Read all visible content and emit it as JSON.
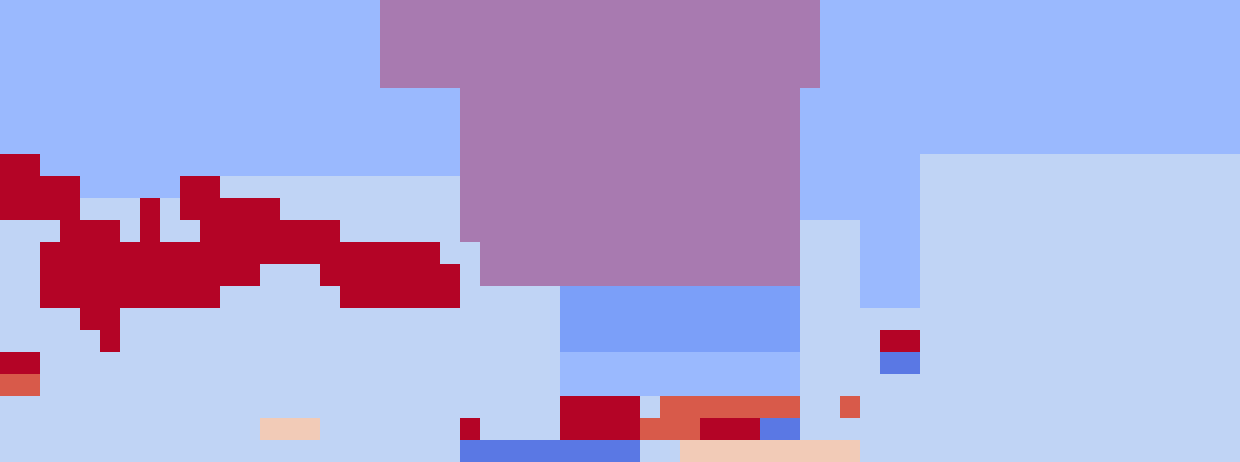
{
  "chart_data": {
    "type": "heatmap",
    "tick_labels": false,
    "xlim": [
      0,
      62
    ],
    "ylim": [
      0,
      21
    ],
    "zlim": [
      0,
      9
    ],
    "cells": [
      [
        3,
        3,
        3,
        3,
        3,
        3,
        3,
        3,
        3,
        3,
        3,
        3,
        3,
        3,
        3,
        3,
        3,
        3,
        3,
        5,
        5,
        5,
        5,
        5,
        5,
        5,
        5,
        5,
        5,
        5,
        5,
        5,
        5,
        5,
        5,
        5,
        5,
        5,
        5,
        5,
        5,
        3,
        3,
        3,
        3,
        3,
        3,
        3,
        3,
        3,
        3,
        3,
        3,
        3,
        3,
        3,
        3,
        3,
        3,
        3,
        3,
        3
      ],
      [
        3,
        3,
        3,
        3,
        3,
        3,
        3,
        3,
        3,
        3,
        3,
        3,
        3,
        3,
        3,
        3,
        3,
        3,
        3,
        5,
        5,
        5,
        5,
        5,
        5,
        5,
        5,
        5,
        5,
        5,
        5,
        5,
        5,
        5,
        5,
        5,
        5,
        5,
        5,
        5,
        5,
        3,
        3,
        3,
        3,
        3,
        3,
        3,
        3,
        3,
        3,
        3,
        3,
        3,
        3,
        3,
        3,
        3,
        3,
        3,
        3,
        3
      ],
      [
        3,
        3,
        3,
        3,
        3,
        3,
        3,
        3,
        3,
        3,
        3,
        3,
        3,
        3,
        3,
        3,
        3,
        3,
        3,
        5,
        5,
        5,
        5,
        5,
        5,
        5,
        5,
        5,
        5,
        5,
        5,
        5,
        5,
        5,
        5,
        5,
        5,
        5,
        5,
        5,
        5,
        3,
        3,
        3,
        3,
        3,
        3,
        3,
        3,
        3,
        3,
        3,
        3,
        3,
        3,
        3,
        3,
        3,
        3,
        3,
        3,
        3
      ],
      [
        3,
        3,
        3,
        3,
        3,
        3,
        3,
        3,
        3,
        3,
        3,
        3,
        3,
        3,
        3,
        3,
        3,
        3,
        3,
        5,
        5,
        5,
        5,
        5,
        5,
        5,
        5,
        5,
        5,
        5,
        5,
        5,
        5,
        5,
        5,
        5,
        5,
        5,
        5,
        5,
        5,
        3,
        3,
        3,
        3,
        3,
        3,
        3,
        3,
        3,
        3,
        3,
        3,
        3,
        3,
        3,
        3,
        3,
        3,
        3,
        3,
        3
      ],
      [
        3,
        3,
        3,
        3,
        3,
        3,
        3,
        3,
        3,
        3,
        3,
        3,
        3,
        3,
        3,
        3,
        3,
        3,
        3,
        3,
        3,
        3,
        3,
        5,
        5,
        5,
        5,
        5,
        5,
        5,
        5,
        5,
        5,
        5,
        5,
        5,
        5,
        5,
        5,
        5,
        3,
        3,
        3,
        3,
        3,
        3,
        3,
        3,
        3,
        3,
        3,
        3,
        3,
        3,
        3,
        3,
        3,
        3,
        3,
        3,
        3,
        3
      ],
      [
        3,
        3,
        3,
        3,
        3,
        3,
        3,
        3,
        3,
        3,
        3,
        3,
        3,
        3,
        3,
        3,
        3,
        3,
        3,
        3,
        3,
        3,
        3,
        5,
        5,
        5,
        5,
        5,
        5,
        5,
        5,
        5,
        5,
        5,
        5,
        5,
        5,
        5,
        5,
        5,
        3,
        3,
        3,
        3,
        3,
        3,
        3,
        3,
        3,
        3,
        3,
        3,
        3,
        3,
        3,
        3,
        3,
        3,
        3,
        3,
        3,
        3
      ],
      [
        3,
        3,
        3,
        3,
        3,
        3,
        3,
        3,
        3,
        3,
        3,
        3,
        3,
        3,
        3,
        3,
        3,
        3,
        3,
        3,
        3,
        3,
        3,
        5,
        5,
        5,
        5,
        5,
        5,
        5,
        5,
        5,
        5,
        5,
        5,
        5,
        5,
        5,
        5,
        5,
        3,
        3,
        3,
        3,
        3,
        3,
        3,
        3,
        3,
        3,
        3,
        3,
        3,
        3,
        3,
        3,
        3,
        3,
        3,
        3,
        3,
        3
      ],
      [
        9,
        9,
        3,
        3,
        3,
        3,
        3,
        3,
        3,
        3,
        3,
        3,
        3,
        3,
        3,
        3,
        3,
        3,
        3,
        3,
        3,
        3,
        3,
        5,
        5,
        5,
        5,
        5,
        5,
        5,
        5,
        5,
        5,
        5,
        5,
        5,
        5,
        5,
        5,
        5,
        3,
        3,
        3,
        3,
        3,
        3,
        4,
        4,
        4,
        4,
        4,
        4,
        4,
        4,
        4,
        4,
        4,
        4,
        4,
        4,
        4,
        4
      ],
      [
        9,
        9,
        9,
        9,
        3,
        3,
        3,
        3,
        3,
        9,
        9,
        4,
        4,
        4,
        4,
        4,
        4,
        4,
        4,
        4,
        4,
        4,
        4,
        5,
        5,
        5,
        5,
        5,
        5,
        5,
        5,
        5,
        5,
        5,
        5,
        5,
        5,
        5,
        5,
        5,
        3,
        3,
        3,
        3,
        3,
        3,
        4,
        4,
        4,
        4,
        4,
        4,
        4,
        4,
        4,
        4,
        4,
        4,
        4,
        4,
        4,
        4
      ],
      [
        9,
        9,
        9,
        9,
        4,
        4,
        4,
        9,
        4,
        9,
        9,
        9,
        9,
        9,
        4,
        4,
        4,
        4,
        4,
        4,
        4,
        4,
        4,
        5,
        5,
        5,
        5,
        5,
        5,
        5,
        5,
        5,
        5,
        5,
        5,
        5,
        5,
        5,
        5,
        5,
        3,
        3,
        3,
        3,
        3,
        3,
        4,
        4,
        4,
        4,
        4,
        4,
        4,
        4,
        4,
        4,
        4,
        4,
        4,
        4,
        4,
        4
      ],
      [
        4,
        4,
        4,
        9,
        9,
        9,
        4,
        9,
        4,
        4,
        9,
        9,
        9,
        9,
        9,
        9,
        9,
        4,
        4,
        4,
        4,
        4,
        4,
        5,
        5,
        5,
        5,
        5,
        5,
        5,
        5,
        5,
        5,
        5,
        5,
        5,
        5,
        5,
        5,
        5,
        4,
        4,
        4,
        3,
        3,
        3,
        4,
        4,
        4,
        4,
        4,
        4,
        4,
        4,
        4,
        4,
        4,
        4,
        4,
        4,
        4,
        4
      ],
      [
        4,
        4,
        9,
        9,
        9,
        9,
        9,
        9,
        9,
        9,
        9,
        9,
        9,
        9,
        9,
        9,
        9,
        9,
        9,
        9,
        9,
        9,
        4,
        4,
        5,
        5,
        5,
        5,
        5,
        5,
        5,
        5,
        5,
        5,
        5,
        5,
        5,
        5,
        5,
        5,
        4,
        4,
        4,
        3,
        3,
        3,
        4,
        4,
        4,
        4,
        4,
        4,
        4,
        4,
        4,
        4,
        4,
        4,
        4,
        4,
        4,
        4
      ],
      [
        4,
        4,
        9,
        9,
        9,
        9,
        9,
        9,
        9,
        9,
        9,
        9,
        9,
        4,
        4,
        4,
        9,
        9,
        9,
        9,
        9,
        9,
        9,
        4,
        5,
        5,
        5,
        5,
        5,
        5,
        5,
        5,
        5,
        5,
        5,
        5,
        5,
        5,
        5,
        5,
        4,
        4,
        4,
        3,
        3,
        3,
        4,
        4,
        4,
        4,
        4,
        4,
        4,
        4,
        4,
        4,
        4,
        4,
        4,
        4,
        4,
        4
      ],
      [
        4,
        4,
        9,
        9,
        9,
        9,
        9,
        9,
        9,
        9,
        9,
        4,
        4,
        4,
        4,
        4,
        4,
        9,
        9,
        9,
        9,
        9,
        9,
        4,
        4,
        4,
        4,
        4,
        2,
        2,
        2,
        2,
        2,
        2,
        2,
        2,
        2,
        2,
        2,
        2,
        4,
        4,
        4,
        3,
        3,
        3,
        4,
        4,
        4,
        4,
        4,
        4,
        4,
        4,
        4,
        4,
        4,
        4,
        4,
        4,
        4,
        4
      ],
      [
        4,
        4,
        4,
        4,
        9,
        9,
        4,
        4,
        4,
        4,
        4,
        4,
        4,
        4,
        4,
        4,
        4,
        4,
        4,
        4,
        4,
        4,
        4,
        4,
        4,
        4,
        4,
        4,
        2,
        2,
        2,
        2,
        2,
        2,
        2,
        2,
        2,
        2,
        2,
        2,
        4,
        4,
        4,
        4,
        4,
        4,
        4,
        4,
        4,
        4,
        4,
        4,
        4,
        4,
        4,
        4,
        4,
        4,
        4,
        4,
        4,
        4
      ],
      [
        4,
        4,
        4,
        4,
        4,
        9,
        4,
        4,
        4,
        4,
        4,
        4,
        4,
        4,
        4,
        4,
        4,
        4,
        4,
        4,
        4,
        4,
        4,
        4,
        4,
        4,
        4,
        4,
        2,
        2,
        2,
        2,
        2,
        2,
        2,
        2,
        2,
        2,
        2,
        2,
        4,
        4,
        4,
        4,
        9,
        9,
        4,
        4,
        4,
        4,
        4,
        4,
        4,
        4,
        4,
        4,
        4,
        4,
        4,
        4,
        4,
        4
      ],
      [
        9,
        9,
        4,
        4,
        4,
        4,
        4,
        4,
        4,
        4,
        4,
        4,
        4,
        4,
        4,
        4,
        4,
        4,
        4,
        4,
        4,
        4,
        4,
        4,
        4,
        4,
        4,
        4,
        3,
        3,
        3,
        3,
        3,
        3,
        3,
        3,
        3,
        3,
        3,
        3,
        4,
        4,
        4,
        4,
        1,
        1,
        4,
        4,
        4,
        4,
        4,
        4,
        4,
        4,
        4,
        4,
        4,
        4,
        4,
        4,
        4,
        4
      ],
      [
        8,
        8,
        4,
        4,
        4,
        4,
        4,
        4,
        4,
        4,
        4,
        4,
        4,
        4,
        4,
        4,
        4,
        4,
        4,
        4,
        4,
        4,
        4,
        4,
        4,
        4,
        4,
        4,
        3,
        3,
        3,
        3,
        3,
        3,
        3,
        3,
        3,
        3,
        3,
        3,
        4,
        4,
        4,
        4,
        4,
        4,
        4,
        4,
        4,
        4,
        4,
        4,
        4,
        4,
        4,
        4,
        4,
        4,
        4,
        4,
        4,
        4
      ],
      [
        4,
        4,
        4,
        4,
        4,
        4,
        4,
        4,
        4,
        4,
        4,
        4,
        4,
        4,
        4,
        4,
        4,
        4,
        4,
        4,
        4,
        4,
        4,
        4,
        4,
        4,
        4,
        4,
        9,
        9,
        9,
        9,
        4,
        8,
        8,
        8,
        8,
        8,
        8,
        8,
        4,
        4,
        8,
        4,
        4,
        4,
        4,
        4,
        4,
        4,
        4,
        4,
        4,
        4,
        4,
        4,
        4,
        4,
        4,
        4,
        4,
        4
      ],
      [
        4,
        4,
        4,
        4,
        4,
        4,
        4,
        4,
        4,
        4,
        4,
        4,
        4,
        6,
        6,
        6,
        4,
        4,
        4,
        4,
        4,
        4,
        4,
        9,
        4,
        4,
        4,
        4,
        9,
        9,
        9,
        9,
        8,
        8,
        8,
        9,
        9,
        9,
        1,
        1,
        4,
        4,
        4,
        4,
        4,
        4,
        4,
        4,
        4,
        4,
        4,
        4,
        4,
        4,
        4,
        4,
        4,
        4,
        4,
        4,
        4,
        4
      ],
      [
        4,
        4,
        4,
        4,
        4,
        4,
        4,
        4,
        4,
        4,
        4,
        4,
        4,
        4,
        4,
        4,
        4,
        4,
        4,
        4,
        4,
        4,
        4,
        1,
        1,
        1,
        1,
        1,
        1,
        1,
        1,
        1,
        4,
        4,
        6,
        6,
        6,
        6,
        6,
        6,
        6,
        6,
        6,
        4,
        4,
        4,
        4,
        4,
        4,
        4,
        4,
        4,
        4,
        4,
        4,
        4,
        4,
        4,
        4,
        4,
        4,
        4
      ]
    ]
  }
}
